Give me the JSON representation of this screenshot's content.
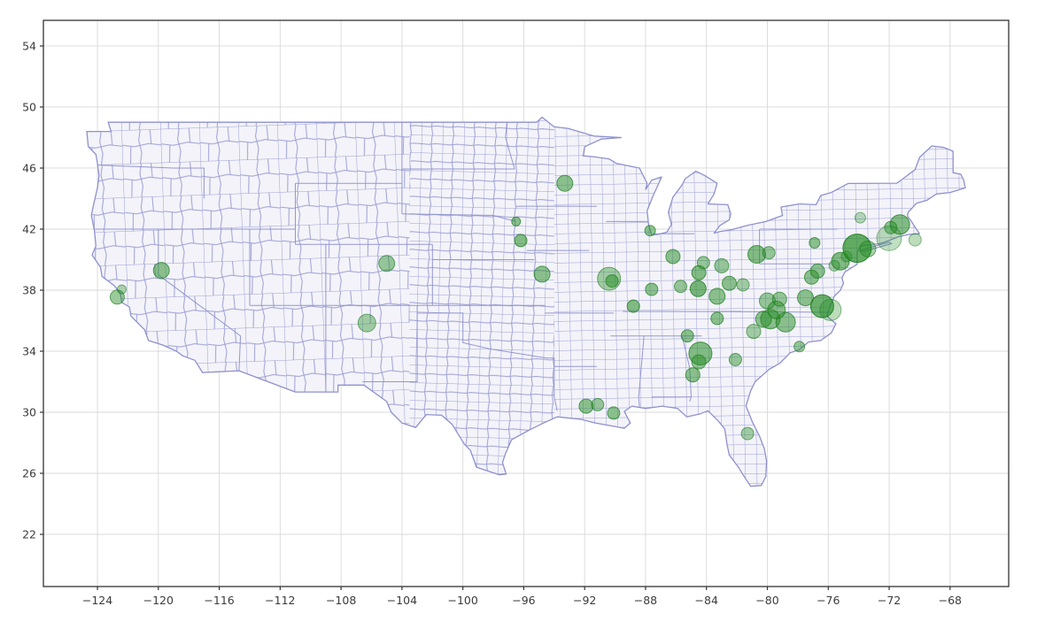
{
  "figure": {
    "background": "#ffffff",
    "kind": "matplotlib-style geographic bubble scatter over US county basemap"
  },
  "chart_data": {
    "type": "scatter",
    "subtype": "geographic-bubble-map",
    "title": "",
    "xlabel": "",
    "ylabel": "",
    "grid": true,
    "legend": null,
    "x_range": [
      -127.55,
      -64.15
    ],
    "y_range": [
      18.58,
      55.68
    ],
    "x_ticks": [
      -124,
      -120,
      -116,
      -112,
      -108,
      -104,
      -100,
      -96,
      -92,
      -88,
      -84,
      -80,
      -76,
      -72,
      -68
    ],
    "y_ticks": [
      22,
      26,
      30,
      34,
      38,
      42,
      46,
      50,
      54
    ],
    "colors": {
      "grid_line": "#d9d9d9",
      "axis_spine": "#333333",
      "tick_label": "#3c3c3c",
      "county_line": "#8e91cd",
      "land_fill": "#f3f3f9",
      "bubble_fill": "#228b22",
      "bubble_edge": "#1d7a1d"
    },
    "bubbles_format": [
      "lon",
      "lat",
      "radius_px",
      "fill_opacity"
    ],
    "bubbles": [
      [
        -122.7,
        37.55,
        8,
        0.45
      ],
      [
        -122.4,
        38.05,
        5,
        0.35
      ],
      [
        -119.8,
        39.3,
        9,
        0.5
      ],
      [
        -105.0,
        39.75,
        9,
        0.45
      ],
      [
        -106.3,
        35.85,
        10,
        0.4
      ],
      [
        -93.3,
        45.0,
        9,
        0.5
      ],
      [
        -96.5,
        42.5,
        5,
        0.5
      ],
      [
        -96.2,
        41.25,
        7,
        0.55
      ],
      [
        -94.8,
        39.05,
        9,
        0.5
      ],
      [
        -90.4,
        38.75,
        13,
        0.4
      ],
      [
        -90.2,
        38.6,
        7,
        0.5
      ],
      [
        -87.7,
        41.9,
        6,
        0.5
      ],
      [
        -86.2,
        40.2,
        8,
        0.5
      ],
      [
        -87.6,
        38.05,
        7,
        0.5
      ],
      [
        -88.8,
        36.95,
        7,
        0.55
      ],
      [
        -84.5,
        39.15,
        8,
        0.55
      ],
      [
        -84.2,
        39.8,
        7,
        0.45
      ],
      [
        -83.0,
        39.6,
        8,
        0.45
      ],
      [
        -84.55,
        38.1,
        9,
        0.6
      ],
      [
        -85.7,
        38.25,
        7,
        0.45
      ],
      [
        -82.5,
        38.45,
        8,
        0.5
      ],
      [
        -81.6,
        38.35,
        7,
        0.4
      ],
      [
        -83.3,
        37.6,
        9,
        0.5
      ],
      [
        -80.7,
        40.35,
        10,
        0.55
      ],
      [
        -79.9,
        40.45,
        7,
        0.45
      ],
      [
        -83.3,
        36.15,
        7,
        0.5
      ],
      [
        -85.25,
        35.0,
        7,
        0.5
      ],
      [
        -84.4,
        33.85,
        13,
        0.55
      ],
      [
        -84.5,
        33.3,
        8,
        0.45
      ],
      [
        -82.1,
        33.45,
        7,
        0.45
      ],
      [
        -84.9,
        32.45,
        8,
        0.5
      ],
      [
        -81.3,
        28.6,
        7,
        0.4
      ],
      [
        -91.9,
        30.4,
        8,
        0.5
      ],
      [
        -91.15,
        30.5,
        7,
        0.45
      ],
      [
        -90.1,
        29.95,
        7,
        0.5
      ],
      [
        -80.9,
        35.3,
        8,
        0.4
      ],
      [
        -80.25,
        36.1,
        9,
        0.5
      ],
      [
        -79.8,
        36.1,
        11,
        0.5
      ],
      [
        -78.8,
        35.9,
        11,
        0.5
      ],
      [
        -79.4,
        36.7,
        10,
        0.5
      ],
      [
        -80.0,
        37.3,
        9,
        0.45
      ],
      [
        -79.2,
        37.4,
        8,
        0.45
      ],
      [
        -77.9,
        34.3,
        6,
        0.45
      ],
      [
        -77.5,
        37.5,
        9,
        0.5
      ],
      [
        -76.4,
        36.95,
        13,
        0.65
      ],
      [
        -75.85,
        36.7,
        12,
        0.3
      ],
      [
        -77.1,
        38.85,
        8,
        0.5
      ],
      [
        -76.7,
        39.25,
        8,
        0.5
      ],
      [
        -75.2,
        39.9,
        10,
        0.55
      ],
      [
        -75.6,
        39.6,
        6,
        0.35
      ],
      [
        -74.8,
        40.2,
        6,
        0.35
      ],
      [
        -74.1,
        40.75,
        16,
        0.7
      ],
      [
        -73.4,
        40.7,
        9,
        0.4
      ],
      [
        -76.9,
        41.1,
        6,
        0.5
      ],
      [
        -73.9,
        42.75,
        6,
        0.3
      ],
      [
        -71.3,
        42.3,
        11,
        0.55
      ],
      [
        -71.9,
        42.1,
        7,
        0.45
      ],
      [
        -72.0,
        41.4,
        14,
        0.28
      ],
      [
        -70.3,
        41.3,
        7,
        0.3
      ]
    ],
    "map_outline": [
      [
        -124.7,
        48.4
      ],
      [
        -124.6,
        47.4
      ],
      [
        -124.1,
        46.9
      ],
      [
        -124.0,
        46.3
      ],
      [
        -123.9,
        45.5
      ],
      [
        -124.0,
        44.7
      ],
      [
        -124.3,
        43.4
      ],
      [
        -124.4,
        42.9
      ],
      [
        -124.2,
        41.9
      ],
      [
        -124.1,
        40.9
      ],
      [
        -124.35,
        40.3
      ],
      [
        -123.8,
        39.5
      ],
      [
        -123.7,
        38.9
      ],
      [
        -122.9,
        38.3
      ],
      [
        -122.5,
        37.8
      ],
      [
        -122.4,
        37.2
      ],
      [
        -121.9,
        36.9
      ],
      [
        -121.8,
        36.3
      ],
      [
        -120.9,
        35.4
      ],
      [
        -120.65,
        34.7
      ],
      [
        -119.7,
        34.4
      ],
      [
        -118.8,
        34.0
      ],
      [
        -118.4,
        33.7
      ],
      [
        -117.6,
        33.4
      ],
      [
        -117.1,
        32.6
      ],
      [
        -114.7,
        32.72
      ],
      [
        -111.0,
        31.33
      ],
      [
        -108.2,
        31.33
      ],
      [
        -108.2,
        31.78
      ],
      [
        -106.5,
        31.78
      ],
      [
        -105.0,
        30.7
      ],
      [
        -104.7,
        30.0
      ],
      [
        -104.0,
        29.3
      ],
      [
        -103.1,
        29.0
      ],
      [
        -102.4,
        29.85
      ],
      [
        -101.4,
        29.8
      ],
      [
        -100.7,
        29.2
      ],
      [
        -99.9,
        27.9
      ],
      [
        -99.5,
        27.5
      ],
      [
        -99.1,
        26.4
      ],
      [
        -97.6,
        25.9
      ],
      [
        -97.15,
        25.95
      ],
      [
        -97.4,
        26.7
      ],
      [
        -97.2,
        27.3
      ],
      [
        -96.8,
        28.2
      ],
      [
        -95.7,
        28.8
      ],
      [
        -94.7,
        29.3
      ],
      [
        -93.8,
        29.7
      ],
      [
        -92.3,
        29.55
      ],
      [
        -91.3,
        29.3
      ],
      [
        -90.2,
        29.1
      ],
      [
        -89.4,
        28.95
      ],
      [
        -89.0,
        29.3
      ],
      [
        -89.4,
        30.05
      ],
      [
        -88.9,
        30.4
      ],
      [
        -88.0,
        30.25
      ],
      [
        -86.9,
        30.4
      ],
      [
        -85.9,
        30.25
      ],
      [
        -85.3,
        29.7
      ],
      [
        -84.4,
        29.9
      ],
      [
        -83.9,
        30.1
      ],
      [
        -83.2,
        29.4
      ],
      [
        -82.8,
        28.9
      ],
      [
        -82.65,
        27.9
      ],
      [
        -82.5,
        27.2
      ],
      [
        -81.9,
        26.4
      ],
      [
        -81.6,
        25.9
      ],
      [
        -81.1,
        25.15
      ],
      [
        -80.4,
        25.2
      ],
      [
        -80.1,
        25.8
      ],
      [
        -80.05,
        26.8
      ],
      [
        -80.2,
        27.6
      ],
      [
        -80.5,
        28.4
      ],
      [
        -81.0,
        29.4
      ],
      [
        -81.4,
        30.4
      ],
      [
        -81.1,
        31.4
      ],
      [
        -80.8,
        32.0
      ],
      [
        -79.9,
        32.8
      ],
      [
        -79.2,
        33.2
      ],
      [
        -78.5,
        33.9
      ],
      [
        -77.9,
        34.1
      ],
      [
        -77.3,
        34.6
      ],
      [
        -76.5,
        34.7
      ],
      [
        -75.8,
        35.2
      ],
      [
        -75.5,
        35.8
      ],
      [
        -76.1,
        36.3
      ],
      [
        -75.9,
        36.9
      ],
      [
        -75.6,
        37.6
      ],
      [
        -75.2,
        38.0
      ],
      [
        -75.0,
        38.45
      ],
      [
        -75.1,
        38.8
      ],
      [
        -74.9,
        39.2
      ],
      [
        -74.1,
        39.7
      ],
      [
        -74.1,
        40.45
      ],
      [
        -73.9,
        40.9
      ],
      [
        -72.6,
        41.05
      ],
      [
        -71.9,
        41.3
      ],
      [
        -71.4,
        41.5
      ],
      [
        -70.7,
        41.65
      ],
      [
        -70.0,
        41.7
      ],
      [
        -70.25,
        42.05
      ],
      [
        -70.6,
        42.6
      ],
      [
        -70.8,
        42.85
      ],
      [
        -70.75,
        43.1
      ],
      [
        -70.2,
        43.7
      ],
      [
        -69.5,
        43.9
      ],
      [
        -68.9,
        44.3
      ],
      [
        -68.0,
        44.4
      ],
      [
        -67.0,
        44.7
      ],
      [
        -67.1,
        45.2
      ],
      [
        -67.3,
        45.6
      ],
      [
        -67.8,
        45.7
      ],
      [
        -67.8,
        47.1
      ],
      [
        -68.4,
        47.35
      ],
      [
        -69.2,
        47.45
      ],
      [
        -70.0,
        46.7
      ],
      [
        -70.3,
        45.9
      ],
      [
        -71.1,
        45.3
      ],
      [
        -71.5,
        45.01
      ],
      [
        -74.7,
        44.99
      ],
      [
        -75.8,
        44.4
      ],
      [
        -76.5,
        44.2
      ],
      [
        -76.8,
        43.6
      ],
      [
        -77.9,
        43.65
      ],
      [
        -79.1,
        43.45
      ],
      [
        -79.05,
        43.1
      ],
      [
        -79.0,
        42.9
      ],
      [
        -80.1,
        42.5
      ],
      [
        -81.3,
        42.25
      ],
      [
        -82.4,
        41.95
      ],
      [
        -83.1,
        41.85
      ],
      [
        -83.5,
        41.74
      ],
      [
        -83.1,
        42.25
      ],
      [
        -82.5,
        42.6
      ],
      [
        -82.4,
        43.0
      ],
      [
        -82.6,
        43.6
      ],
      [
        -83.9,
        43.65
      ],
      [
        -83.5,
        44.3
      ],
      [
        -83.3,
        45.0
      ],
      [
        -84.1,
        45.5
      ],
      [
        -84.7,
        45.8
      ],
      [
        -85.4,
        45.3
      ],
      [
        -85.6,
        44.9
      ],
      [
        -86.2,
        44.1
      ],
      [
        -86.5,
        43.1
      ],
      [
        -86.3,
        42.3
      ],
      [
        -86.6,
        41.8
      ],
      [
        -87.2,
        41.65
      ],
      [
        -87.6,
        41.62
      ],
      [
        -87.8,
        42.3
      ],
      [
        -87.9,
        43.2
      ],
      [
        -87.5,
        44.2
      ],
      [
        -87.0,
        45.3
      ],
      [
        -86.95,
        45.42
      ],
      [
        -87.6,
        45.2
      ],
      [
        -88.0,
        44.6
      ],
      [
        -87.9,
        45.0
      ],
      [
        -88.4,
        46.0
      ],
      [
        -89.9,
        46.3
      ],
      [
        -90.4,
        46.6
      ],
      [
        -91.5,
        46.75
      ],
      [
        -92.1,
        46.8
      ],
      [
        -92.0,
        47.4
      ],
      [
        -90.9,
        47.9
      ],
      [
        -89.6,
        48.0
      ],
      [
        -91.4,
        48.1
      ],
      [
        -93.1,
        48.6
      ],
      [
        -94.0,
        48.7
      ],
      [
        -94.8,
        49.33
      ],
      [
        -95.15,
        49.0
      ],
      [
        -123.3,
        49.0
      ],
      [
        -123.1,
        48.4
      ],
      [
        -124.7,
        48.4
      ]
    ],
    "long_island": [
      [
        -73.95,
        40.6
      ],
      [
        -72.0,
        41.15
      ],
      [
        -71.85,
        41.05
      ],
      [
        -73.65,
        40.54
      ],
      [
        -73.95,
        40.6
      ]
    ],
    "state_lines": [
      [
        [
          -120,
          42
        ],
        [
          -120,
          39
        ],
        [
          -114.6,
          35
        ],
        [
          -114.7,
          32.72
        ]
      ],
      [
        [
          -124.2,
          42
        ],
        [
          -111,
          42
        ]
      ],
      [
        [
          -124,
          46.2
        ],
        [
          -119,
          46
        ],
        [
          -117,
          46
        ],
        [
          -117,
          44
        ]
      ],
      [
        [
          -114,
          42
        ],
        [
          -114,
          37
        ]
      ],
      [
        [
          -114,
          37
        ],
        [
          -94.6,
          37
        ]
      ],
      [
        [
          -109,
          37
        ],
        [
          -109,
          31.33
        ]
      ],
      [
        [
          -109,
          41
        ],
        [
          -109,
          37
        ]
      ],
      [
        [
          -111,
          45
        ],
        [
          -111,
          41
        ]
      ],
      [
        [
          -111,
          41
        ],
        [
          -102,
          41
        ]
      ],
      [
        [
          -111,
          45
        ],
        [
          -104,
          45
        ]
      ],
      [
        [
          -104,
          49
        ],
        [
          -104,
          45
        ],
        [
          -104,
          43
        ]
      ],
      [
        [
          -102,
          41
        ],
        [
          -102,
          37
        ]
      ],
      [
        [
          -104,
          45.94
        ],
        [
          -96.6,
          45.94
        ]
      ],
      [
        [
          -104,
          43
        ],
        [
          -98,
          42.9
        ],
        [
          -96.5,
          42.5
        ]
      ],
      [
        [
          -102,
          40
        ],
        [
          -95.3,
          40
        ]
      ],
      [
        [
          -96.6,
          45.94
        ],
        [
          -97.2,
          48
        ],
        [
          -97.1,
          49
        ]
      ],
      [
        [
          -96.5,
          43.5
        ],
        [
          -91.2,
          43.5
        ]
      ],
      [
        [
          -95.8,
          40.6
        ],
        [
          -91.7,
          40.6
        ]
      ],
      [
        [
          -94.6,
          36.5
        ],
        [
          -90.1,
          36.5
        ]
      ],
      [
        [
          -94,
          33
        ],
        [
          -91.2,
          33
        ]
      ],
      [
        [
          -103,
          37
        ],
        [
          -103,
          32
        ],
        [
          -106.6,
          32
        ]
      ],
      [
        [
          -103,
          36.5
        ],
        [
          -100,
          36.5
        ],
        [
          -100,
          34.56
        ],
        [
          -98.1,
          34.13
        ],
        [
          -94.5,
          33.55
        ],
        [
          -94,
          33.55
        ],
        [
          -94,
          31
        ],
        [
          -93.8,
          30.1
        ]
      ],
      [
        [
          -90.3,
          35
        ],
        [
          -84.3,
          35
        ]
      ],
      [
        [
          -89.5,
          36.6
        ],
        [
          -81.7,
          36.6
        ]
      ],
      [
        [
          -83.7,
          36.6
        ],
        [
          -75.8,
          36.55
        ]
      ],
      [
        [
          -88.1,
          35
        ],
        [
          -88.45,
          31
        ],
        [
          -88.4,
          30.3
        ]
      ],
      [
        [
          -85.6,
          35
        ],
        [
          -85.1,
          32.9
        ],
        [
          -85,
          31
        ],
        [
          -85.1,
          30.7
        ]
      ],
      [
        [
          -87.6,
          31
        ],
        [
          -85,
          31
        ]
      ],
      [
        [
          -87.5,
          41.7
        ],
        [
          -84.8,
          41.7
        ]
      ],
      [
        [
          -90.6,
          42.5
        ],
        [
          -87.8,
          42.5
        ]
      ],
      [
        [
          -80.5,
          42
        ],
        [
          -75.4,
          42
        ]
      ],
      [
        [
          -80.52,
          42
        ],
        [
          -80.52,
          39.72
        ]
      ],
      [
        [
          -80.52,
          39.72
        ],
        [
          -75.8,
          39.72
        ]
      ]
    ]
  }
}
